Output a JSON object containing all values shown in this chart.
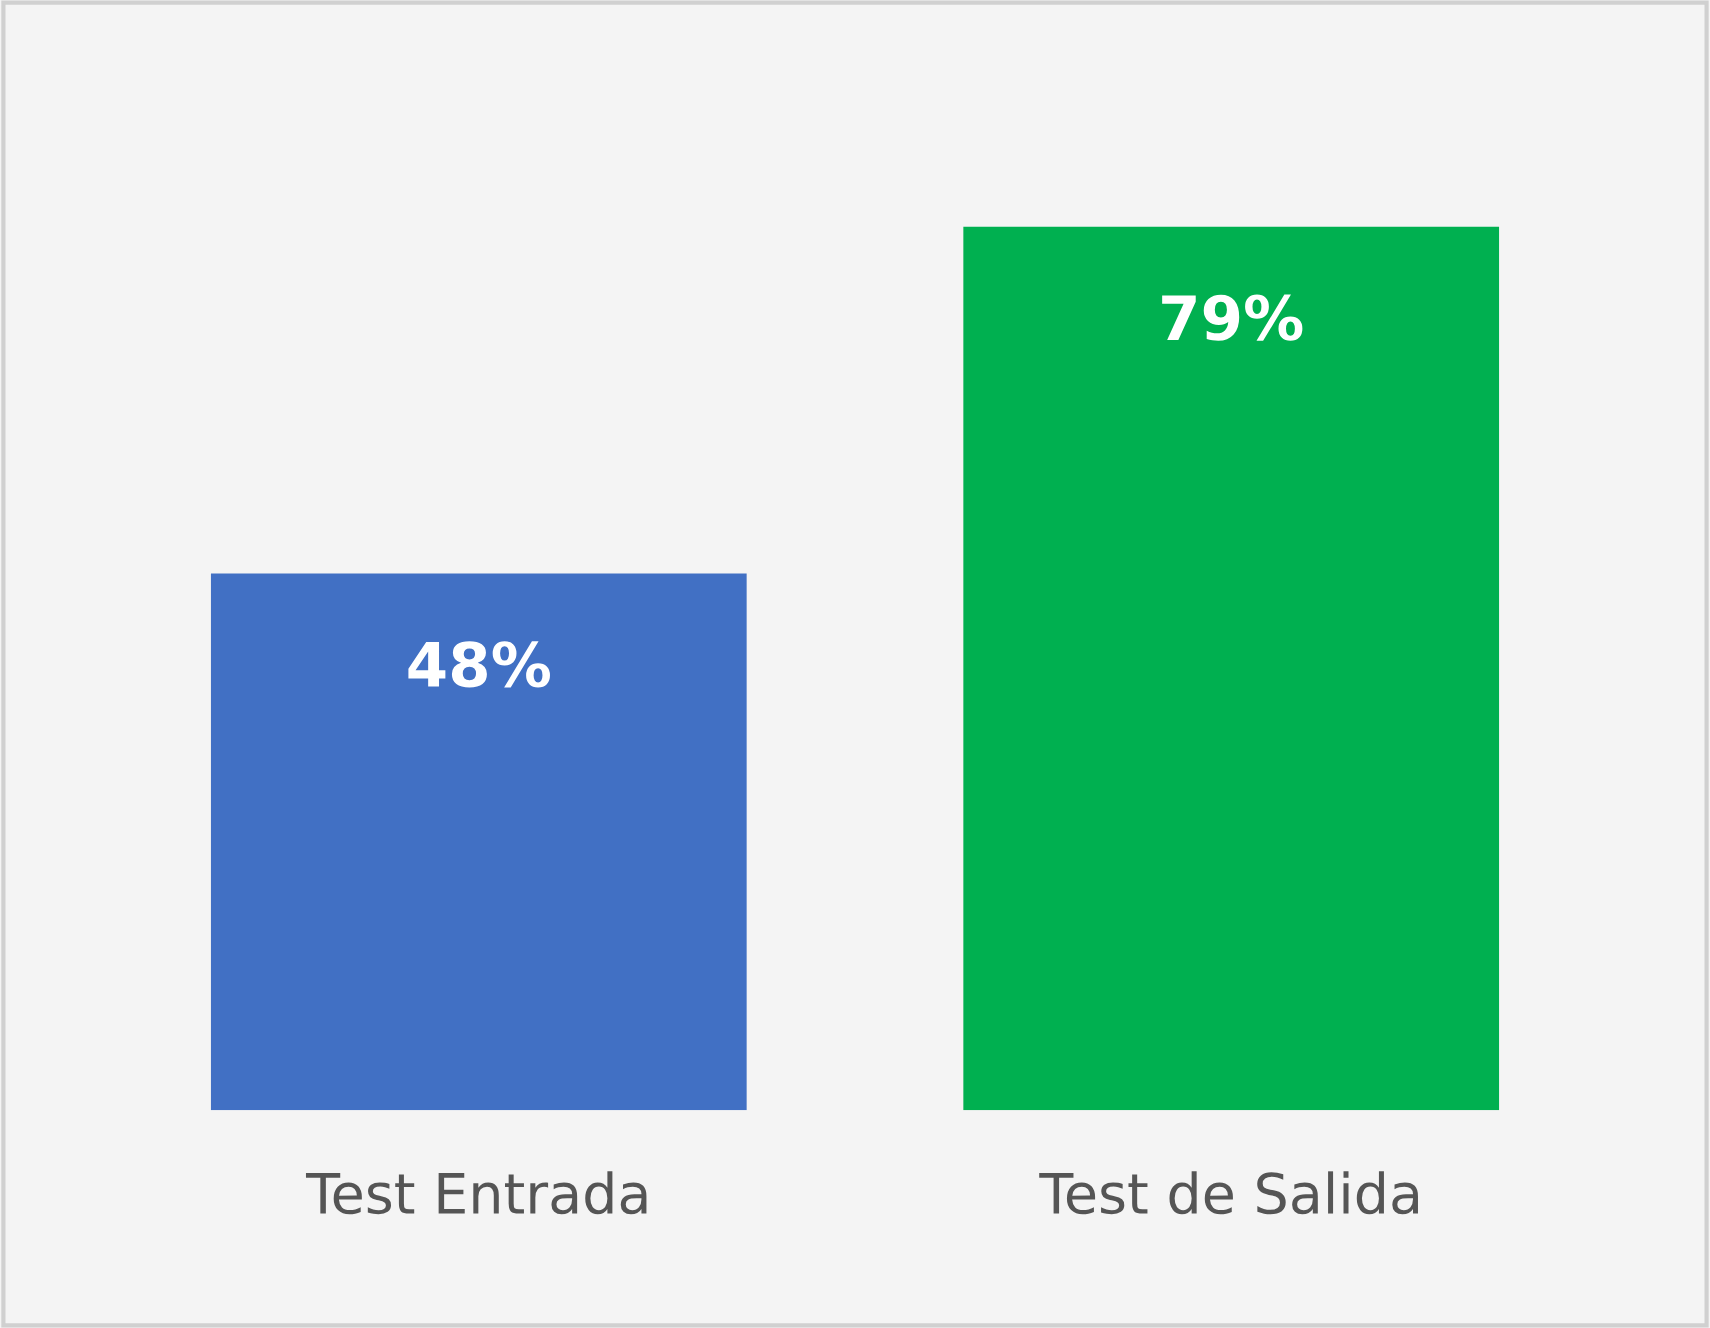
{
  "chart_data": {
    "type": "bar",
    "categories": [
      "Test Entrada",
      "Test de Salida"
    ],
    "values": [
      48,
      79
    ],
    "colors": [
      "#4170c4",
      "#00b050"
    ],
    "value_labels": [
      "48%",
      "79%"
    ],
    "grid": false,
    "legend": false
  }
}
